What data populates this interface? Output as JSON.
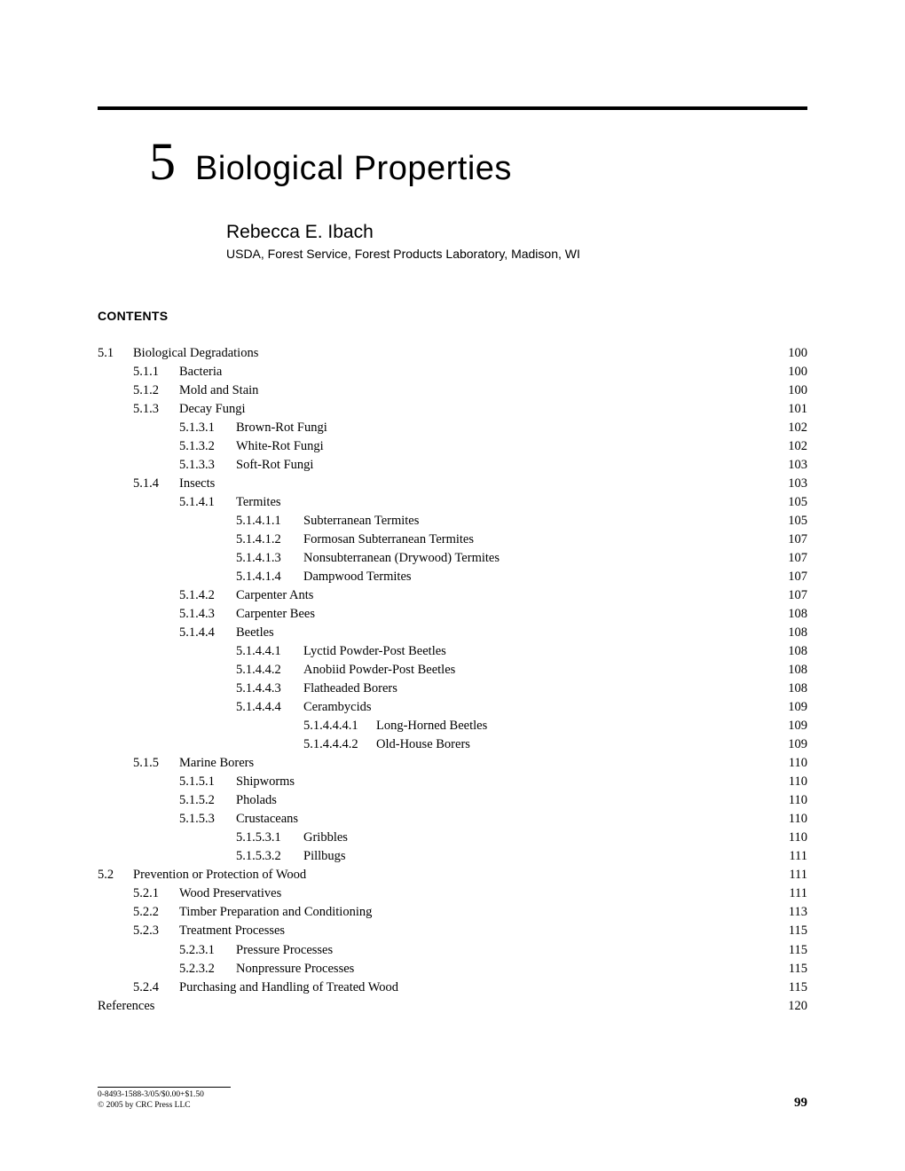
{
  "chapter": {
    "number": "5",
    "title": "Biological Properties"
  },
  "author": {
    "name": "Rebecca E. Ibach",
    "affiliation": "USDA, Forest Service, Forest Products Laboratory, Madison, WI"
  },
  "contentsLabel": "CONTENTS",
  "toc": [
    {
      "indent": 0,
      "num": "5.1",
      "title": "Biological Degradations",
      "page": "100"
    },
    {
      "indent": 1,
      "num": "5.1.1",
      "title": "Bacteria",
      "page": "100"
    },
    {
      "indent": 1,
      "num": "5.1.2",
      "title": "Mold and Stain",
      "page": "100"
    },
    {
      "indent": 1,
      "num": "5.1.3",
      "title": "Decay Fungi",
      "page": "101"
    },
    {
      "indent": 2,
      "num": "5.1.3.1",
      "title": "Brown-Rot Fungi",
      "page": "102"
    },
    {
      "indent": 2,
      "num": "5.1.3.2",
      "title": "White-Rot Fungi",
      "page": "102"
    },
    {
      "indent": 2,
      "num": "5.1.3.3",
      "title": "Soft-Rot Fungi",
      "page": "103"
    },
    {
      "indent": 1,
      "num": "5.1.4",
      "title": "Insects",
      "page": "103"
    },
    {
      "indent": 2,
      "num": "5.1.4.1",
      "title": "Termites",
      "page": "105"
    },
    {
      "indent": 3,
      "num": "5.1.4.1.1",
      "title": "Subterranean Termites",
      "page": "105"
    },
    {
      "indent": 3,
      "num": "5.1.4.1.2",
      "title": "Formosan Subterranean Termites",
      "page": "107"
    },
    {
      "indent": 3,
      "num": "5.1.4.1.3",
      "title": "Nonsubterranean (Drywood) Termites",
      "page": "107"
    },
    {
      "indent": 3,
      "num": "5.1.4.1.4",
      "title": "Dampwood Termites",
      "page": "107"
    },
    {
      "indent": 2,
      "num": "5.1.4.2",
      "title": "Carpenter Ants",
      "page": "107"
    },
    {
      "indent": 2,
      "num": "5.1.4.3",
      "title": "Carpenter Bees",
      "page": "108"
    },
    {
      "indent": 2,
      "num": "5.1.4.4",
      "title": "Beetles",
      "page": "108"
    },
    {
      "indent": 3,
      "num": "5.1.4.4.1",
      "title": "Lyctid Powder-Post Beetles",
      "page": "108"
    },
    {
      "indent": 3,
      "num": "5.1.4.4.2",
      "title": "Anobiid Powder-Post Beetles",
      "page": "108"
    },
    {
      "indent": 3,
      "num": "5.1.4.4.3",
      "title": "Flatheaded Borers",
      "page": "108"
    },
    {
      "indent": 3,
      "num": "5.1.4.4.4",
      "title": "Cerambycids",
      "page": "109"
    },
    {
      "indent": 4,
      "num": "5.1.4.4.4.1",
      "title": "Long-Horned Beetles",
      "page": "109"
    },
    {
      "indent": 4,
      "num": "5.1.4.4.4.2",
      "title": "Old-House Borers",
      "page": "109"
    },
    {
      "indent": 1,
      "num": "5.1.5",
      "title": "Marine Borers",
      "page": "110"
    },
    {
      "indent": 2,
      "num": "5.1.5.1",
      "title": "Shipworms",
      "page": "110"
    },
    {
      "indent": 2,
      "num": "5.1.5.2",
      "title": "Pholads",
      "page": "110"
    },
    {
      "indent": 2,
      "num": "5.1.5.3",
      "title": "Crustaceans",
      "page": "110"
    },
    {
      "indent": 3,
      "num": "5.1.5.3.1",
      "title": "Gribbles",
      "page": "110"
    },
    {
      "indent": 3,
      "num": "5.1.5.3.2",
      "title": "Pillbugs",
      "page": "111"
    },
    {
      "indent": 0,
      "num": "5.2",
      "title": "Prevention or Protection of Wood",
      "page": "111"
    },
    {
      "indent": 1,
      "num": "5.2.1",
      "title": "Wood Preservatives",
      "page": "111"
    },
    {
      "indent": 1,
      "num": "5.2.2",
      "title": "Timber Preparation and Conditioning",
      "page": "113"
    },
    {
      "indent": 1,
      "num": "5.2.3",
      "title": "Treatment Processes",
      "page": "115"
    },
    {
      "indent": 2,
      "num": "5.2.3.1",
      "title": "Pressure Processes",
      "page": "115"
    },
    {
      "indent": 2,
      "num": "5.2.3.2",
      "title": "Nonpressure Processes",
      "page": "115"
    },
    {
      "indent": 1,
      "num": "5.2.4",
      "title": "Purchasing and Handling of Treated Wood",
      "page": "115"
    },
    {
      "indent": 0,
      "num": "",
      "title": "References",
      "page": "120"
    }
  ],
  "indentWidths": {
    "0": 0,
    "1": 40,
    "2": 92,
    "3": 156,
    "4": 232
  },
  "numColWidths": {
    "0": 40,
    "1": 52,
    "2": 64,
    "3": 76,
    "4": 82
  },
  "footer": {
    "line1": "0-8493-1588-3/05/$0.00+$1.50",
    "line2": "© 2005 by CRC Press LLC",
    "pageNumber": "99"
  }
}
